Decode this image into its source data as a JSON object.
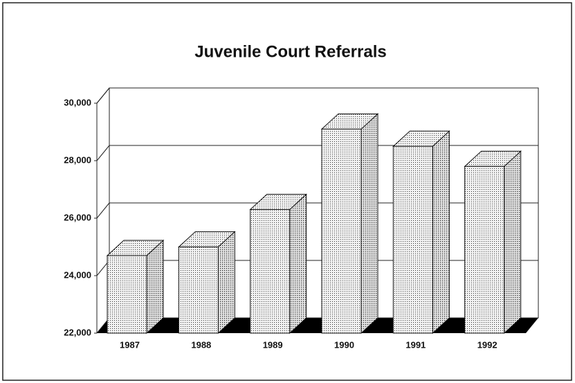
{
  "chart_data": {
    "type": "bar3d",
    "title": "Juvenile Court Referrals",
    "categories": [
      "1987",
      "1988",
      "1989",
      "1990",
      "1991",
      "1992"
    ],
    "values": [
      24700,
      25000,
      26300,
      29100,
      28500,
      27800
    ],
    "ylim": [
      22000,
      30000
    ],
    "yticks": [
      {
        "value": 22000,
        "label": "22,000"
      },
      {
        "value": 24000,
        "label": "24,000"
      },
      {
        "value": 26000,
        "label": "26,000"
      },
      {
        "value": 28000,
        "label": "28,000"
      },
      {
        "value": 30000,
        "label": "30,000"
      }
    ],
    "grid": true,
    "color": "#d8d8d8"
  }
}
